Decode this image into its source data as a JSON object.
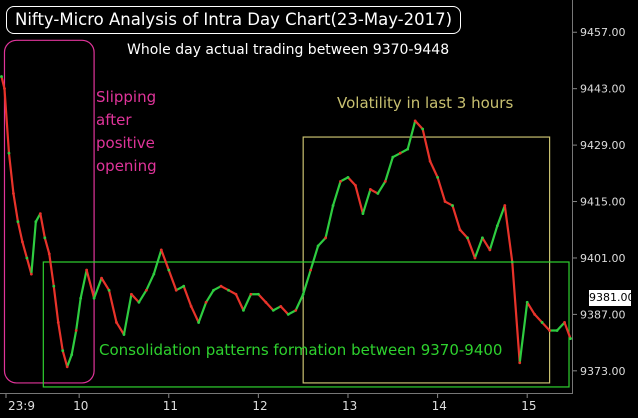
{
  "title": "Nifty-Micro Analysis of Intra Day Chart(23-May-2017)",
  "annotations": {
    "top": "Whole day actual trading between 9370-9448",
    "slipping_lines": [
      "Slipping",
      "after",
      "positive",
      "opening"
    ],
    "volatility": "Volatility in last 3 hours",
    "consolidation": "Consolidation patterns formation between 9370-9400"
  },
  "current_price": "9381.00",
  "colors": {
    "up": "#2ecc40",
    "down": "#e8332a",
    "pink": "#e0349a",
    "green_box": "#2ed12e",
    "yellow_box": "#c8c070"
  },
  "chart_data": {
    "type": "line",
    "title": "Nifty-Micro Analysis of Intra Day Chart(23-May-2017)",
    "x_tick_labels": [
      "23:9",
      "10",
      "11",
      "12",
      "13",
      "14",
      "15"
    ],
    "y_tick_labels": [
      "9457.00",
      "9443.00",
      "9429.00",
      "9415.00",
      "9401.00",
      "9387.00",
      "9373.00"
    ],
    "y_ticks": [
      9457,
      9443,
      9429,
      9415,
      9401,
      9387,
      9373
    ],
    "ylim": [
      9367.5,
      9465.0
    ],
    "xlim": [
      "09:07",
      "15:30"
    ],
    "series": [
      {
        "x": [
          "09:08",
          "09:10",
          "09:13",
          "09:16",
          "09:19",
          "09:22",
          "09:25",
          "09:28",
          "09:31",
          "09:34",
          "09:37",
          "09:40",
          "09:43",
          "09:46",
          "09:49",
          "09:52",
          "09:55",
          "09:58",
          "10:01",
          "10:05",
          "10:10",
          "10:15",
          "10:20",
          "10:25",
          "10:30",
          "10:35",
          "10:40",
          "10:45",
          "10:50",
          "10:55",
          "11:00",
          "11:05",
          "11:10",
          "11:15",
          "11:20",
          "11:25",
          "11:30",
          "11:35",
          "11:40",
          "11:45",
          "11:50",
          "11:55",
          "12:00",
          "12:05",
          "12:10",
          "12:15",
          "12:20",
          "12:25",
          "12:30",
          "12:35",
          "12:40",
          "12:45",
          "12:50",
          "12:55",
          "13:00",
          "13:05",
          "13:10",
          "13:15",
          "13:20",
          "13:25",
          "13:30",
          "13:35",
          "13:40",
          "13:45",
          "13:50",
          "13:55",
          "14:00",
          "14:05",
          "14:10",
          "14:15",
          "14:20",
          "14:25",
          "14:30",
          "14:35",
          "14:40",
          "14:45",
          "14:50",
          "14:55",
          "15:00",
          "15:05",
          "15:10",
          "15:15",
          "15:20",
          "15:25",
          "15:29"
        ],
        "y": [
          9446,
          9443,
          9427,
          9417,
          9410,
          9405,
          9401,
          9397,
          9410,
          9412,
          9406,
          9402,
          9394,
          9385,
          9378,
          9374,
          9377,
          9383,
          9391,
          9398,
          9391,
          9396,
          9393,
          9385,
          9382,
          9392,
          9390,
          9393,
          9397,
          9403,
          9398,
          9393,
          9394,
          9389,
          9385,
          9390,
          9393,
          9394,
          9393,
          9392,
          9388,
          9392,
          9392,
          9390,
          9388,
          9389,
          9387,
          9388,
          9392,
          9398,
          9404,
          9406,
          9414,
          9420,
          9421,
          9419,
          9412,
          9418,
          9417,
          9420,
          9426,
          9427,
          9428,
          9435,
          9433,
          9425,
          9421,
          9415,
          9414,
          9408,
          9406,
          9401,
          9406,
          9403,
          9409,
          9414,
          9400,
          9375,
          9390,
          9387,
          9385,
          9383,
          9383,
          9385,
          9381
        ]
      }
    ]
  }
}
